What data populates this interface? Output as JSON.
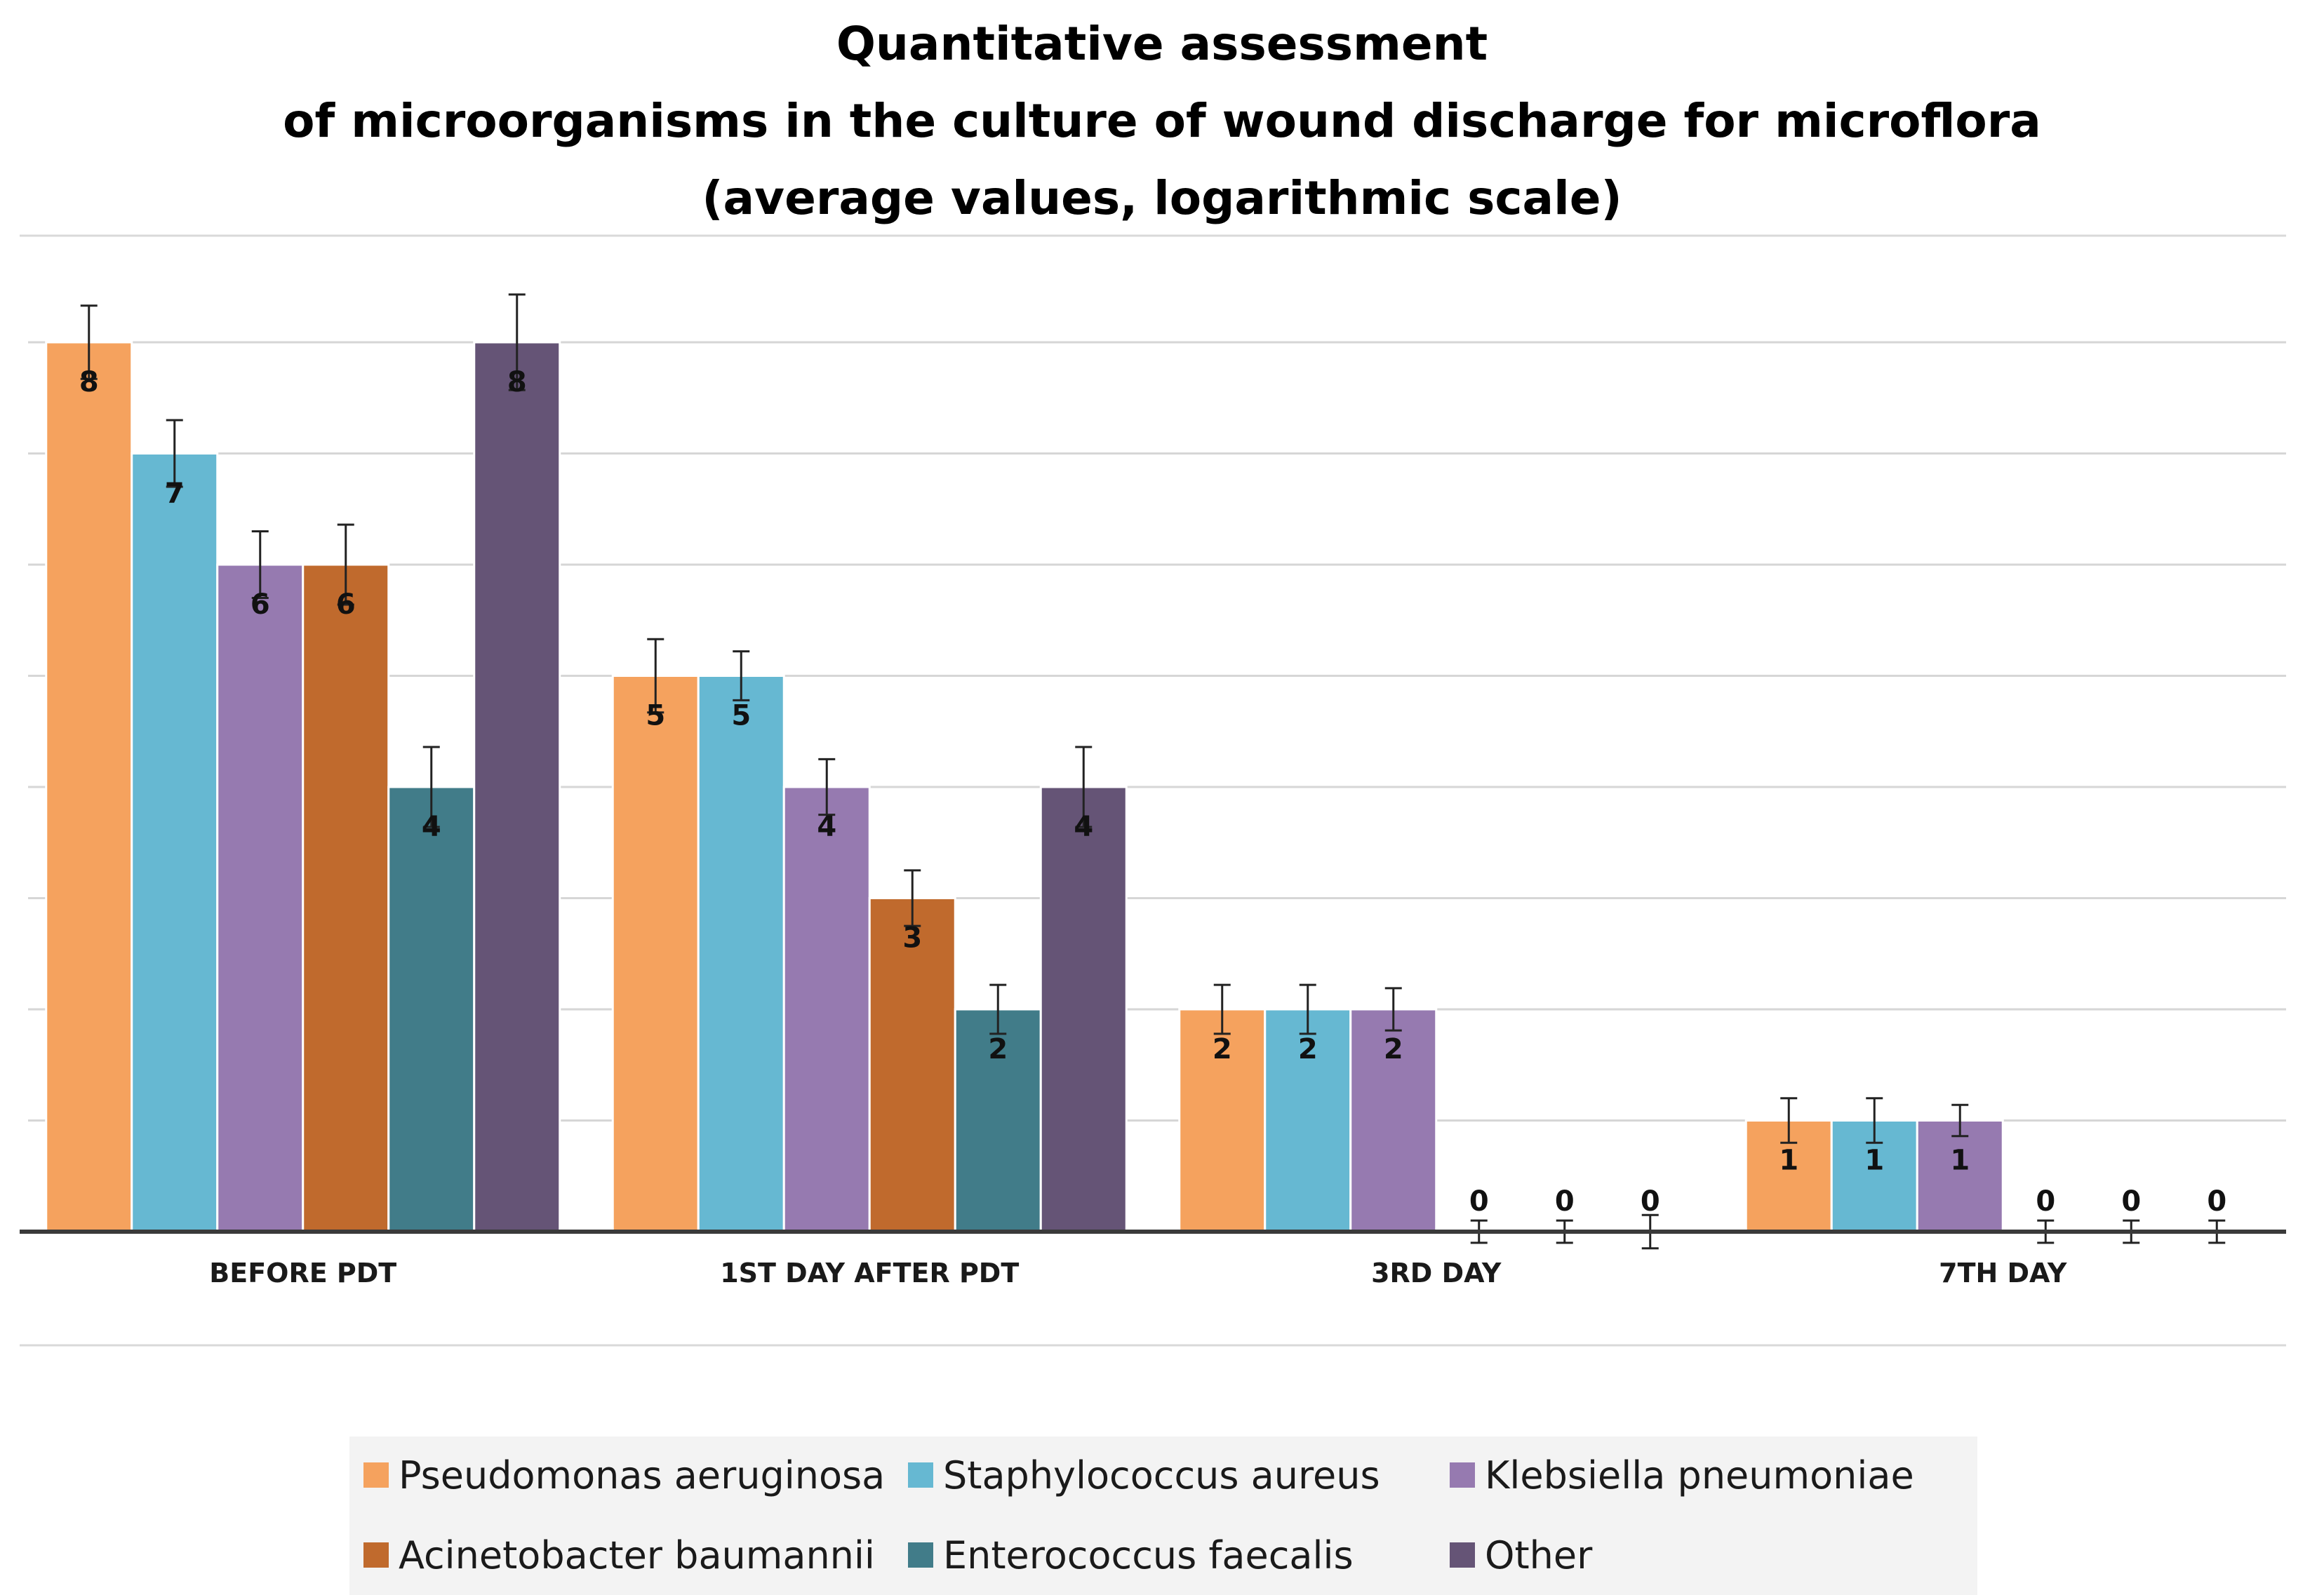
{
  "chart_data": {
    "type": "bar",
    "title": [
      "Quantitative  assessment",
      "of microorganisms in the culture of wound discharge for microflora",
      "(average values, logarithmic scale)"
    ],
    "xlabel": "",
    "ylabel": "",
    "ylim": [
      0,
      9
    ],
    "grid": true,
    "legend_position": "bottom",
    "categories": [
      "BEFORE PDT",
      "1ST DAY AFTER PDT",
      "3RD DAY",
      "7TH DAY"
    ],
    "series": [
      {
        "name": "Pseudomonas aeruginosa",
        "color": "#F5A25E",
        "values": [
          8,
          5,
          2,
          1
        ],
        "error": [
          0.33,
          0.33,
          0.22,
          0.2
        ]
      },
      {
        "name": "Staphylococcus aureus",
        "color": "#66B8D2",
        "values": [
          7,
          5,
          2,
          1
        ],
        "error": [
          0.3,
          0.22,
          0.22,
          0.2
        ]
      },
      {
        "name": "Klebsiella pneumoniae",
        "color": "#967AB0",
        "values": [
          6,
          4,
          2,
          1
        ],
        "error": [
          0.3,
          0.25,
          0.19,
          0.14
        ]
      },
      {
        "name": "Acinetobacter baumannii",
        "color": "#C06A2D",
        "values": [
          6,
          3,
          0,
          0
        ],
        "error": [
          0.36,
          0.25,
          0.1,
          0.1
        ]
      },
      {
        "name": "Enterococcus faecalis",
        "color": "#417C89",
        "values": [
          4,
          2,
          0,
          0
        ],
        "error": [
          0.36,
          0.22,
          0.1,
          0.1
        ]
      },
      {
        "name": "Other",
        "color": "#655476",
        "values": [
          8,
          4,
          0,
          0
        ],
        "error": [
          0.43,
          0.36,
          0.15,
          0.1
        ]
      }
    ]
  }
}
